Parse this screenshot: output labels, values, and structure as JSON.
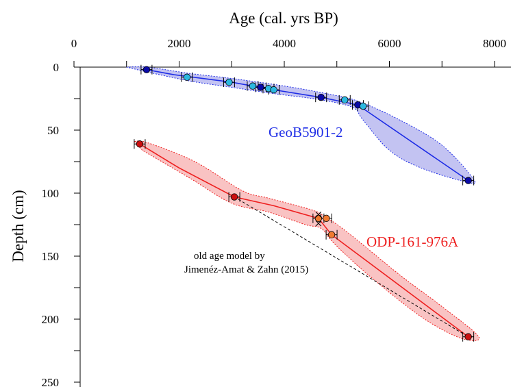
{
  "chart_data": {
    "type": "scatter",
    "title": "",
    "xlabel": "Age (cal. yrs BP)",
    "ylabel": "Depth (cm)",
    "xlim": [
      0,
      8000
    ],
    "ylim": [
      0,
      250
    ],
    "y_inverted": true,
    "x_axis_position": "top",
    "x_ticks": [
      "0",
      "2000",
      "4000",
      "6000",
      "8000"
    ],
    "x_tick_values": [
      0,
      2000,
      4000,
      6000,
      8000
    ],
    "y_ticks": [
      "0",
      "50",
      "100",
      "150",
      "200",
      "250"
    ],
    "y_tick_values": [
      0,
      50,
      100,
      150,
      200,
      250
    ],
    "grid": false,
    "series": [
      {
        "name": "GeoB5901-2",
        "color": "#1f2ee6",
        "fill_color": "#b8b8f0",
        "model_line": [
          [
            1380,
            2
          ],
          [
            1900,
            6
          ],
          [
            3000,
            12
          ],
          [
            3800,
            18
          ],
          [
            4700,
            24
          ],
          [
            5400,
            30
          ],
          [
            7500,
            90
          ]
        ],
        "envelope_upper": [
          [
            1000,
            0
          ],
          [
            1400,
            0
          ],
          [
            2200,
            5
          ],
          [
            3000,
            9
          ],
          [
            4000,
            15
          ],
          [
            4800,
            21
          ],
          [
            5400,
            27
          ],
          [
            6200,
            42
          ],
          [
            7000,
            62
          ],
          [
            7600,
            89
          ]
        ],
        "envelope_lower": [
          [
            7450,
            91
          ],
          [
            6600,
            80
          ],
          [
            6000,
            66
          ],
          [
            5500,
            42
          ],
          [
            5300,
            32
          ],
          [
            4700,
            26
          ],
          [
            3800,
            21
          ],
          [
            3000,
            16
          ],
          [
            2200,
            11
          ],
          [
            1300,
            3
          ]
        ],
        "dates_dark": [
          [
            1380,
            2
          ],
          [
            3550,
            16
          ],
          [
            4700,
            24
          ],
          [
            5400,
            30
          ],
          [
            7500,
            90
          ]
        ],
        "dates_light": [
          [
            2150,
            8
          ],
          [
            2950,
            12
          ],
          [
            3400,
            15
          ],
          [
            3700,
            17
          ],
          [
            3800,
            18
          ],
          [
            5150,
            26
          ],
          [
            5500,
            31
          ]
        ]
      },
      {
        "name": "ODP-161-976A",
        "color": "#ee2020",
        "fill_color": "#f8b8b8",
        "model_line": [
          [
            1250,
            61
          ],
          [
            2000,
            80
          ],
          [
            3050,
            103
          ],
          [
            3800,
            110
          ],
          [
            4650,
            120
          ],
          [
            4900,
            133
          ],
          [
            7500,
            214
          ]
        ],
        "envelope_upper": [
          [
            1150,
            59
          ],
          [
            1400,
            60
          ],
          [
            2300,
            75
          ],
          [
            3200,
            98
          ],
          [
            3700,
            104
          ],
          [
            4500,
            113
          ],
          [
            4750,
            118
          ],
          [
            5200,
            131
          ],
          [
            6200,
            165
          ],
          [
            7000,
            190
          ],
          [
            7700,
            214
          ]
        ],
        "envelope_lower": [
          [
            7350,
            215
          ],
          [
            6600,
            198
          ],
          [
            5600,
            165
          ],
          [
            4950,
            140
          ],
          [
            4700,
            128
          ],
          [
            4400,
            125
          ],
          [
            3700,
            115
          ],
          [
            3000,
            108
          ],
          [
            2200,
            88
          ],
          [
            1300,
            66
          ]
        ],
        "dates_dark": [
          [
            1250,
            61
          ],
          [
            3050,
            103
          ],
          [
            7500,
            214
          ]
        ],
        "dates_light": [
          [
            4650,
            120
          ],
          [
            4800,
            120
          ],
          [
            4900,
            133
          ]
        ],
        "crosses": [
          [
            4650,
            117
          ],
          [
            4650,
            124
          ]
        ]
      }
    ],
    "old_model": {
      "label_lines": [
        "old age model by",
        "Jimenéz-Amat & Zahn (2015)"
      ],
      "points": [
        [
          3050,
          103
        ],
        [
          7500,
          214
        ]
      ]
    },
    "annotations": {
      "geob": "GeoB5901-2",
      "odp": "ODP-161-976A"
    }
  }
}
